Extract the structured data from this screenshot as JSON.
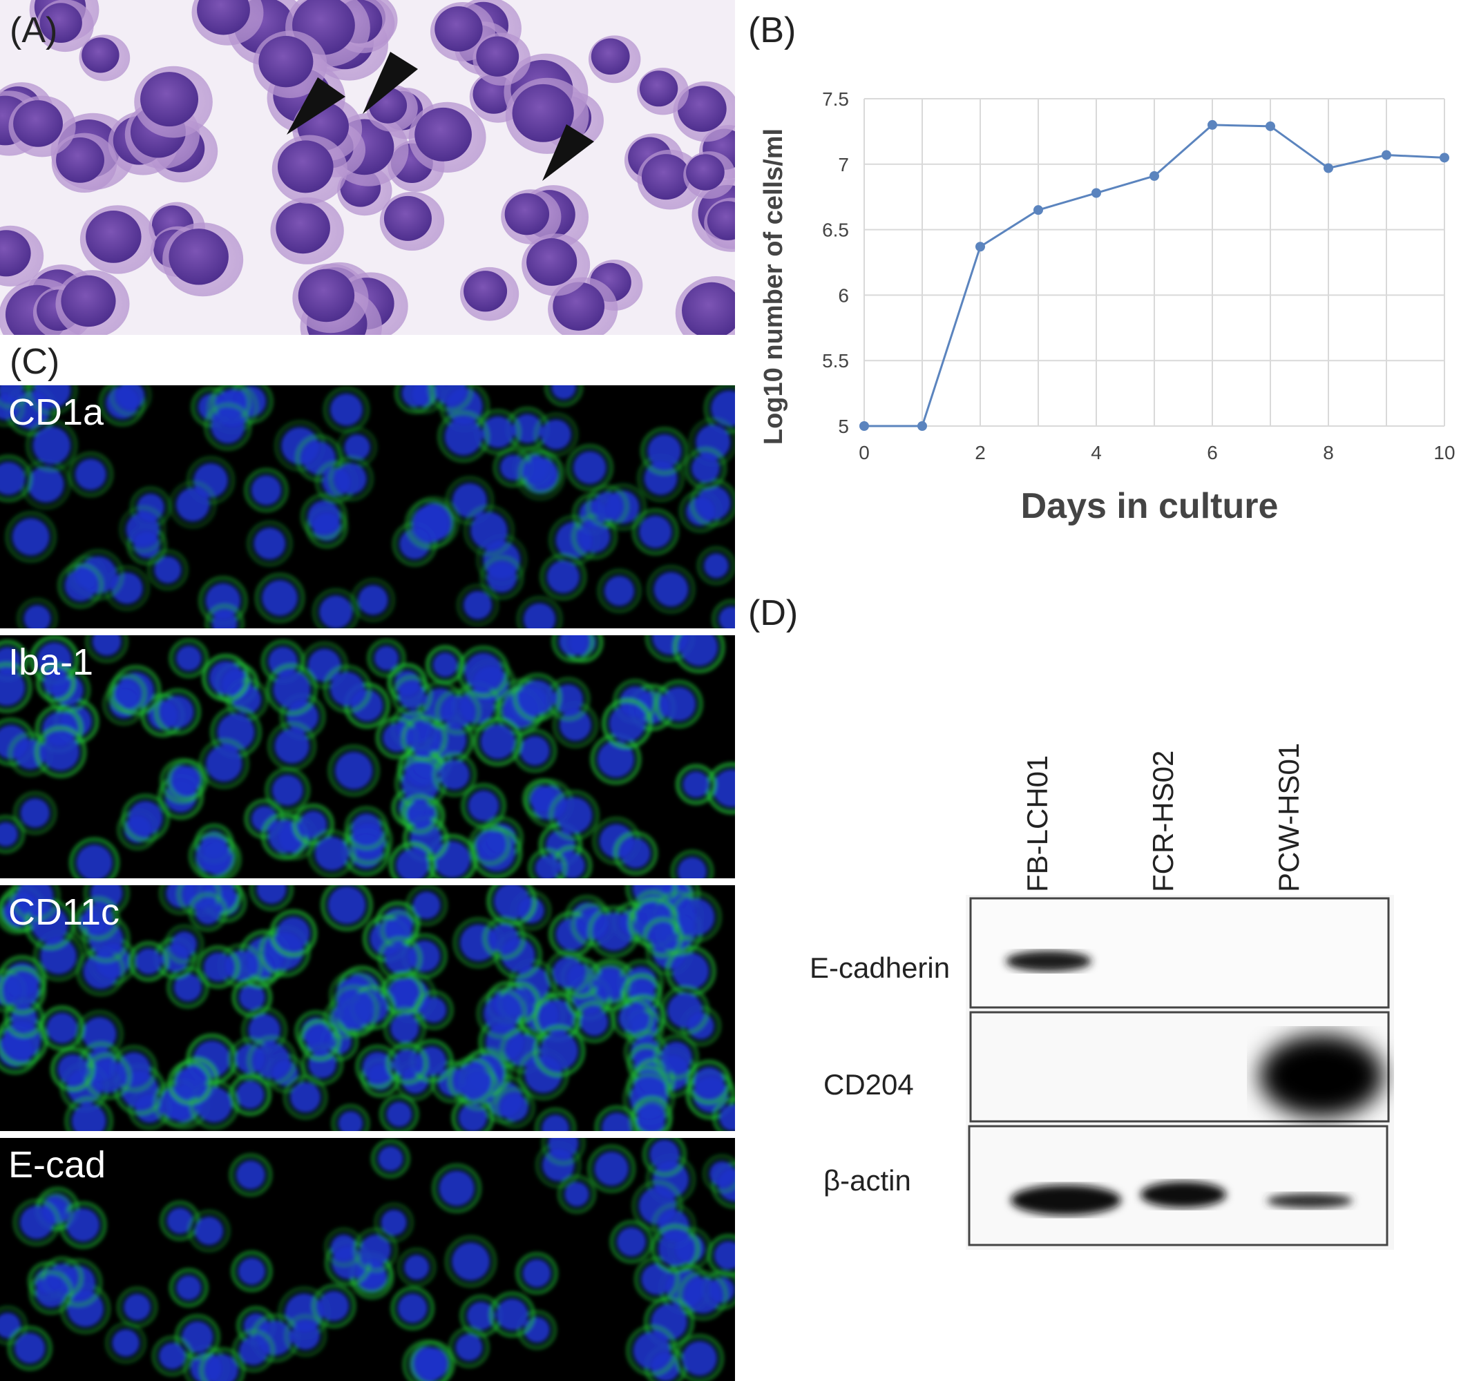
{
  "panels": {
    "A": "(A)",
    "B": "(B)",
    "C": "(C)",
    "D": "(D)"
  },
  "if_stains": [
    "CD1a",
    "Iba-1",
    "CD11c",
    "E-cad"
  ],
  "chart_data": {
    "type": "line",
    "xlabel": "Days in culture",
    "ylabel": "Log10 number of cells/ml",
    "xlim": [
      0,
      10
    ],
    "ylim": [
      5,
      7.5
    ],
    "xticks": [
      "0",
      "2",
      "4",
      "6",
      "8",
      "10"
    ],
    "yticks": [
      "5",
      "5.5",
      "6",
      "6.5",
      "7",
      "7.5"
    ],
    "grid": true,
    "color": "#5B84BE",
    "x": [
      0,
      1,
      2,
      3,
      4,
      5,
      6,
      7,
      8,
      9,
      10
    ],
    "y": [
      5.0,
      5.0,
      6.37,
      6.65,
      6.78,
      6.91,
      7.3,
      7.29,
      6.97,
      7.07,
      7.05
    ]
  },
  "western_blot": {
    "lanes": [
      "FB-LCH01",
      "FCR-HS02",
      "PCW-HS01"
    ],
    "rows": [
      "E-cadherin",
      "CD204",
      "β-actin"
    ]
  }
}
